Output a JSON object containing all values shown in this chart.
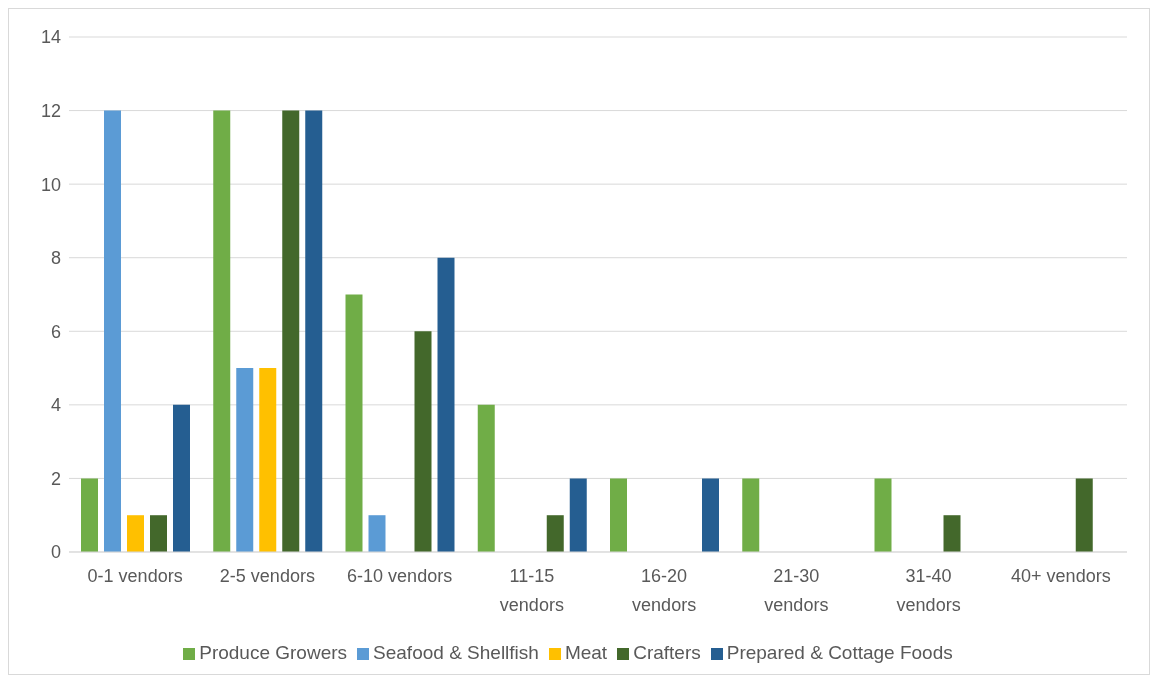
{
  "chart_data": {
    "type": "bar",
    "categories": [
      "0-1 vendors",
      "2-5 vendors",
      "6-10 vendors",
      "11-15 vendors",
      "16-20 vendors",
      "21-30 vendors",
      "31-40 vendors",
      "40+ vendors"
    ],
    "series": [
      {
        "name": "Produce Growers",
        "color": "#70ad47",
        "values": [
          2,
          12,
          7,
          4,
          2,
          2,
          2,
          0
        ]
      },
      {
        "name": "Seafood & Shellfish",
        "color": "#5b9bd5",
        "values": [
          12,
          5,
          1,
          0,
          0,
          0,
          0,
          0
        ]
      },
      {
        "name": "Meat",
        "color": "#ffc000",
        "values": [
          1,
          5,
          0,
          0,
          0,
          0,
          0,
          0
        ]
      },
      {
        "name": "Crafters",
        "color": "#43682b",
        "values": [
          1,
          12,
          6,
          1,
          0,
          0,
          1,
          2
        ]
      },
      {
        "name": "Prepared & Cottage Foods",
        "color": "#255e91",
        "values": [
          4,
          12,
          8,
          2,
          2,
          0,
          0,
          0
        ]
      }
    ],
    "ylim": [
      0,
      14
    ],
    "yticks": [
      0,
      2,
      4,
      6,
      8,
      10,
      12,
      14
    ],
    "grid": "y",
    "legend": "bottom"
  }
}
